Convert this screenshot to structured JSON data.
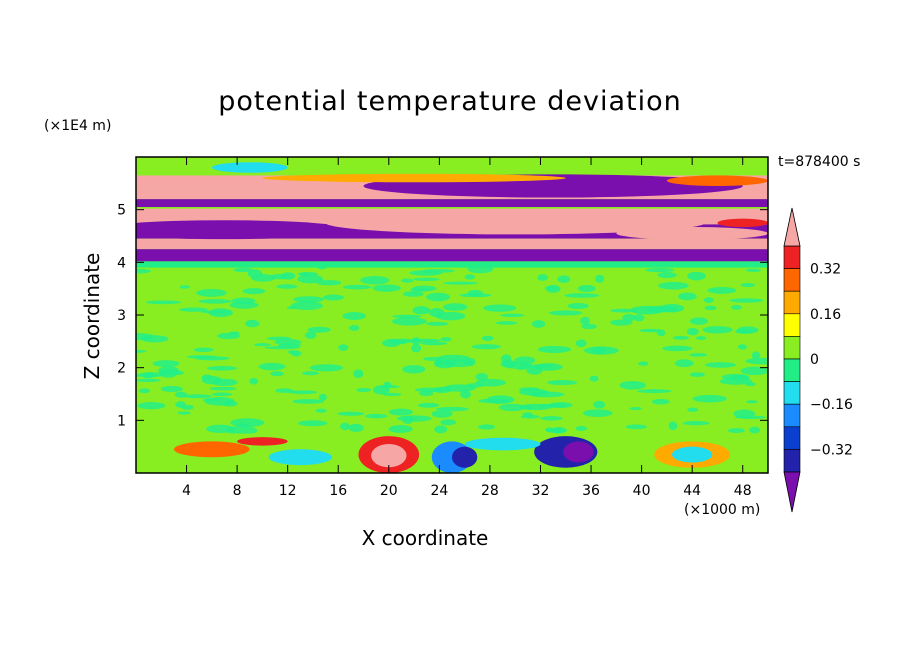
{
  "chart_data": {
    "type": "heatmap",
    "title": "potential temperature deviation",
    "xlabel": "X coordinate",
    "ylabel": "Z coordinate",
    "x_unit": "(×1000 m)",
    "y_unit": "(×1E4 m)",
    "time_label": "t=878400 s",
    "xlim": [
      0,
      50
    ],
    "ylim": [
      0,
      6
    ],
    "x_ticks": [
      "4",
      "8",
      "12",
      "16",
      "20",
      "24",
      "28",
      "32",
      "36",
      "40",
      "44",
      "48"
    ],
    "y_ticks": [
      "1",
      "2",
      "3",
      "4",
      "5"
    ],
    "grid": false,
    "colorbar": {
      "position": "right",
      "tick_labels": [
        "0.32",
        "0.16",
        "0",
        "−0.16",
        "−0.32"
      ],
      "levels": [
        -0.4,
        -0.32,
        -0.24,
        -0.16,
        -0.08,
        0,
        0.08,
        0.16,
        0.24,
        0.32,
        0.4
      ],
      "colors": [
        "#7a0fae",
        "#2222aa",
        "#0a3fd0",
        "#1a8cff",
        "#22ddee",
        "#22ee88",
        "#88ee22",
        "#ffff00",
        "#ffaa00",
        "#ff6600",
        "#ee2222",
        "#f7a6a6"
      ],
      "extend": "both"
    },
    "regions": [
      {
        "z": [
          0,
          0.75
        ],
        "description_value": "turbulent mixed layer with mixed positive and negative deviations"
      },
      {
        "z": [
          0.75,
          4.0
        ],
        "value": 0.0
      },
      {
        "z": [
          4.0,
          4.5
        ],
        "value": "alternating strongly positive (>0.4) and negative (<-0.4)"
      },
      {
        "z": [
          4.5,
          5.0
        ],
        "value": "alternating strongly positive (>0.4) and negative (<-0.4)"
      },
      {
        "z": [
          5.0,
          5.5
        ],
        "value": "alternating strongly positive (>0.4) and negative (<-0.4)"
      },
      {
        "z": [
          5.5,
          6.0
        ],
        "value": 0.0
      }
    ]
  }
}
